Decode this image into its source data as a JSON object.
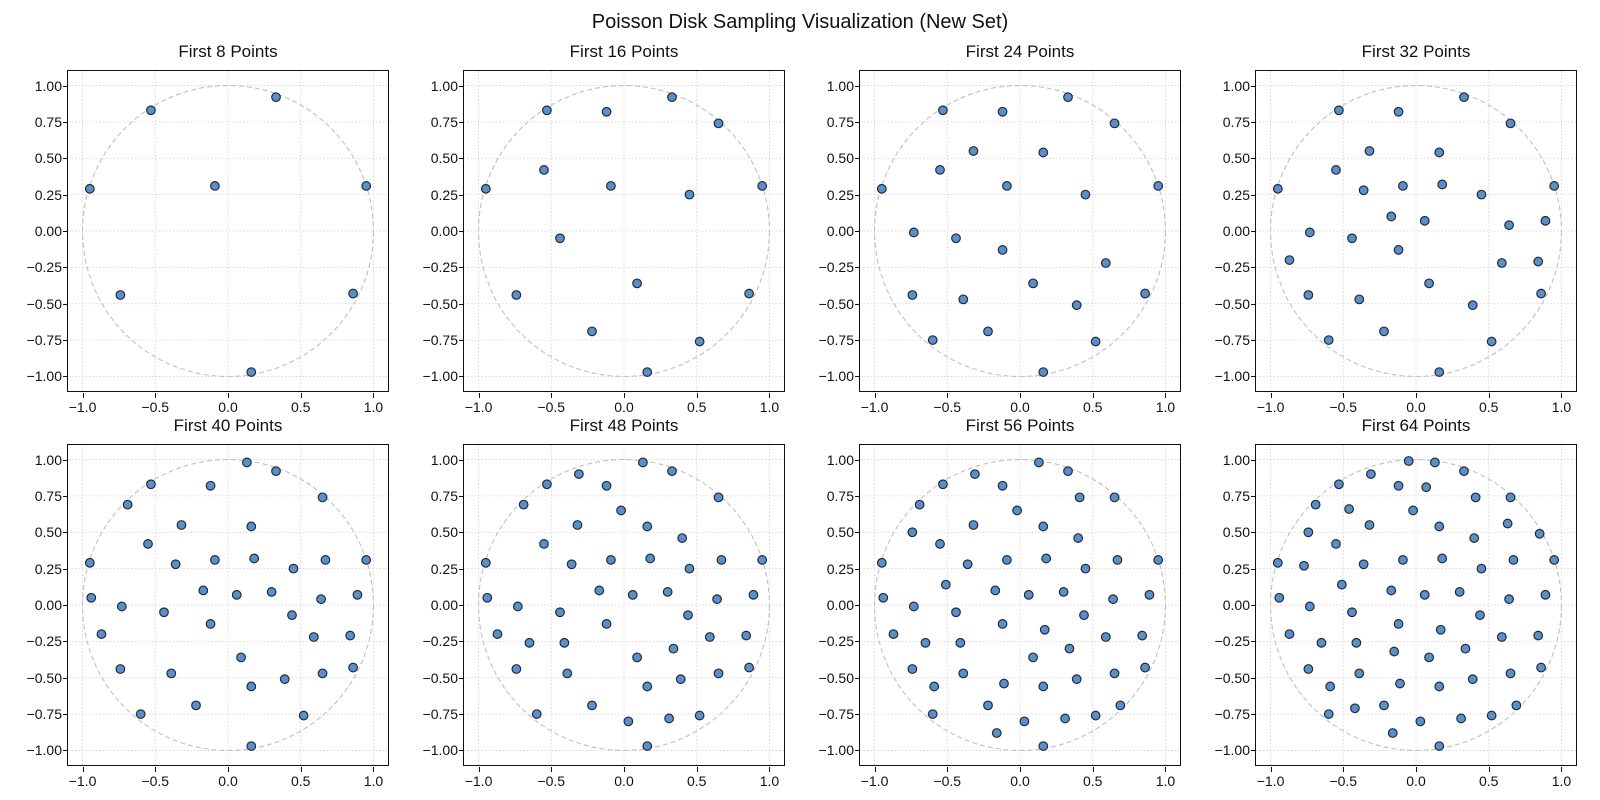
{
  "figure": {
    "title": "Poisson Disk Sampling Visualization (New Set)"
  },
  "chart_data": {
    "type": "scatter",
    "title": "Poisson Disk Sampling Visualization (New Set)",
    "layout": "2x4 grid of subplots",
    "xlim": [
      -1.1,
      1.1
    ],
    "ylim": [
      -1.1,
      1.1
    ],
    "xticks": [
      -1.0,
      -0.5,
      0.0,
      0.5,
      1.0
    ],
    "xtick_labels": [
      "−1.0",
      "−0.5",
      "0.0",
      "0.5",
      "1.0"
    ],
    "yticks": [
      1.0,
      0.75,
      0.5,
      0.25,
      0.0,
      -0.25,
      -0.5,
      -0.75,
      -1.0
    ],
    "ytick_labels": [
      "1.00",
      "0.75",
      "0.50",
      "0.25",
      "0.00",
      "−0.25",
      "−0.50",
      "−0.75",
      "−1.00"
    ],
    "grid": true,
    "reference_circle": {
      "center": [
        0,
        0
      ],
      "radius": 1.0,
      "style": "dashed",
      "color": "#c0c0c0"
    },
    "marker": {
      "fill": "#5b8fc7",
      "edge": "#1f2d3d"
    },
    "panels": [
      {
        "title": "First 8 Points",
        "count": 8
      },
      {
        "title": "First 16 Points",
        "count": 16
      },
      {
        "title": "First 24 Points",
        "count": 24
      },
      {
        "title": "First 32 Points",
        "count": 32
      },
      {
        "title": "First 40 Points",
        "count": 40
      },
      {
        "title": "First 48 Points",
        "count": 48
      },
      {
        "title": "First 56 Points",
        "count": 56
      },
      {
        "title": "First 64 Points",
        "count": 64
      }
    ],
    "points": [
      [
        -0.53,
        0.83
      ],
      [
        0.33,
        0.92
      ],
      [
        -0.95,
        0.29
      ],
      [
        -0.09,
        0.31
      ],
      [
        0.95,
        0.31
      ],
      [
        -0.74,
        -0.44
      ],
      [
        0.86,
        -0.43
      ],
      [
        0.16,
        -0.97
      ],
      [
        -0.12,
        0.82
      ],
      [
        0.65,
        0.74
      ],
      [
        -0.55,
        0.42
      ],
      [
        0.45,
        0.25
      ],
      [
        -0.44,
        -0.05
      ],
      [
        0.09,
        -0.36
      ],
      [
        -0.22,
        -0.69
      ],
      [
        0.52,
        -0.76
      ],
      [
        -0.32,
        0.55
      ],
      [
        0.16,
        0.54
      ],
      [
        -0.73,
        -0.01
      ],
      [
        -0.12,
        -0.13
      ],
      [
        0.59,
        -0.22
      ],
      [
        -0.39,
        -0.47
      ],
      [
        0.39,
        -0.51
      ],
      [
        -0.6,
        -0.75
      ],
      [
        -0.36,
        0.28
      ],
      [
        0.18,
        0.32
      ],
      [
        -0.17,
        0.1
      ],
      [
        0.06,
        0.07
      ],
      [
        0.64,
        0.04
      ],
      [
        0.89,
        0.07
      ],
      [
        -0.87,
        -0.2
      ],
      [
        0.84,
        -0.21
      ],
      [
        0.13,
        0.98
      ],
      [
        -0.69,
        0.69
      ],
      [
        -0.94,
        0.05
      ],
      [
        0.3,
        0.09
      ],
      [
        0.67,
        0.31
      ],
      [
        0.44,
        -0.07
      ],
      [
        0.65,
        -0.47
      ],
      [
        0.16,
        -0.56
      ],
      [
        -0.31,
        0.9
      ],
      [
        -0.02,
        0.65
      ],
      [
        0.4,
        0.46
      ],
      [
        -0.65,
        -0.26
      ],
      [
        -0.41,
        -0.26
      ],
      [
        0.34,
        -0.3
      ],
      [
        0.03,
        -0.8
      ],
      [
        0.31,
        -0.78
      ],
      [
        0.41,
        0.74
      ],
      [
        -0.74,
        0.5
      ],
      [
        -0.51,
        0.14
      ],
      [
        0.17,
        -0.17
      ],
      [
        -0.59,
        -0.56
      ],
      [
        -0.11,
        -0.54
      ],
      [
        0.69,
        -0.69
      ],
      [
        -0.16,
        -0.88
      ],
      [
        -0.05,
        0.99
      ],
      [
        0.07,
        0.81
      ],
      [
        -0.46,
        0.66
      ],
      [
        0.63,
        0.56
      ],
      [
        0.85,
        0.49
      ],
      [
        -0.77,
        0.27
      ],
      [
        -0.15,
        -0.32
      ],
      [
        -0.42,
        -0.71
      ]
    ]
  }
}
